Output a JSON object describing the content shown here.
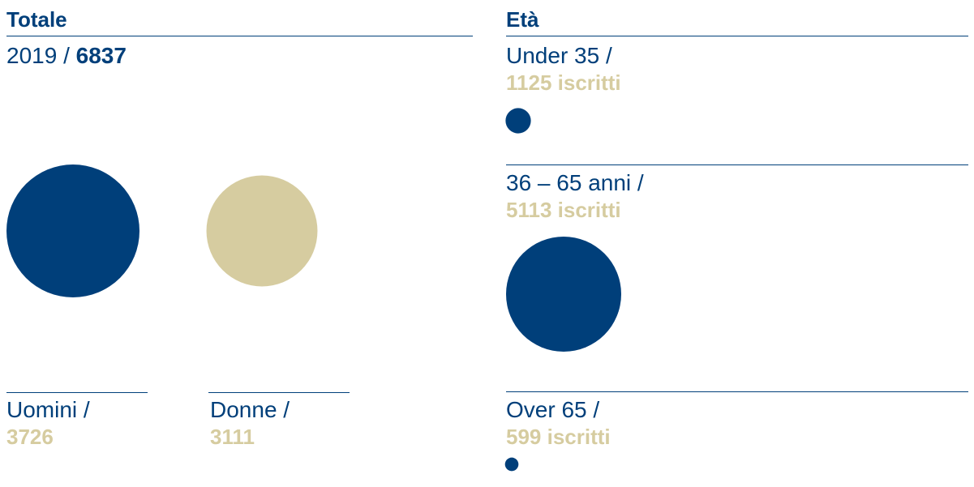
{
  "totale": {
    "title": "Totale",
    "year": "2019 /",
    "total": 6837,
    "items": [
      {
        "label": "Uomini /",
        "value": 3726,
        "color": "#003f7a"
      },
      {
        "label": "Donne /",
        "value": 3111,
        "color": "#d6cca0"
      }
    ]
  },
  "eta": {
    "title": "Età",
    "items": [
      {
        "label": "Under 35 /",
        "value": 1125,
        "value_label": "1125 iscritti",
        "color": "#003f7a"
      },
      {
        "label": "36 – 65 anni /",
        "value": 5113,
        "value_label": "5113 iscritti",
        "color": "#003f7a"
      },
      {
        "label": "Over 65 /",
        "value": 599,
        "value_label": "599 iscritti",
        "color": "#003f7a"
      }
    ]
  }
}
